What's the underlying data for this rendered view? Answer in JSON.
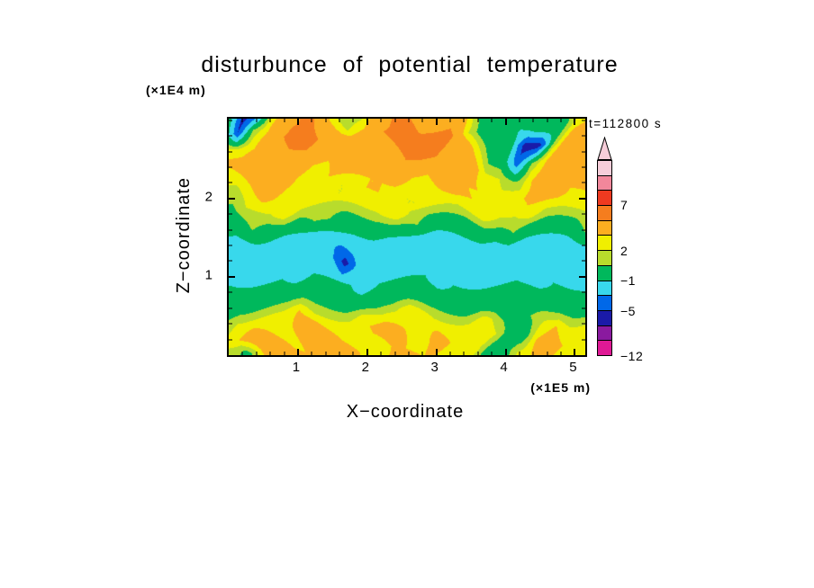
{
  "page": {
    "background": "#ffffff"
  },
  "chart_data": {
    "type": "heatmap",
    "title": "disturbunce of potential temperature",
    "xlabel": "X−coordinate",
    "ylabel": "Z−coordinate",
    "x_unit": "(×1E5 m)",
    "y_unit": "(×1E4 m)",
    "time_label": "t=112800 s",
    "xlim": [
      0,
      5.15
    ],
    "ylim": [
      0,
      3.02
    ],
    "x_ticks": [
      1,
      2,
      3,
      4,
      5
    ],
    "y_ticks": [
      1,
      2
    ],
    "minor_tick_step": 0.2,
    "grid": [
      [
        0,
        -6,
        -5,
        2,
        4,
        5,
        5,
        3,
        1,
        1,
        3,
        5,
        5,
        4,
        5,
        4,
        1,
        0,
        -1,
        0,
        1,
        0,
        2,
        3
      ],
      [
        2,
        -5,
        1,
        3,
        5,
        6,
        5,
        4,
        2,
        3,
        5,
        6,
        5,
        6,
        5,
        2,
        0,
        -1,
        0,
        -6,
        -6,
        1,
        4,
        4
      ],
      [
        3,
        2,
        3,
        5,
        5,
        4,
        3,
        4,
        5,
        5,
        4,
        5,
        5,
        5,
        4,
        4,
        2,
        0,
        0,
        -4,
        1,
        3,
        5,
        5
      ],
      [
        3,
        4,
        5,
        4,
        3,
        2,
        3,
        4,
        4,
        3,
        3,
        4,
        3,
        3,
        4,
        5,
        4,
        2,
        2,
        1,
        3,
        4,
        5,
        4
      ],
      [
        2,
        3,
        4,
        3,
        2,
        2,
        3,
        2,
        2,
        3,
        3,
        2,
        2,
        2,
        3,
        4,
        3,
        3,
        2,
        3,
        4,
        4,
        3,
        3
      ],
      [
        1,
        2,
        2,
        2,
        3,
        2,
        2,
        2,
        2,
        2,
        2,
        3,
        2,
        2,
        2,
        2,
        3,
        2,
        2,
        3,
        2,
        2,
        2,
        2
      ],
      [
        0,
        0,
        1,
        0,
        0,
        0,
        1,
        1,
        0,
        0,
        0,
        0,
        1,
        0,
        0,
        0,
        0,
        0,
        1,
        0,
        0,
        0,
        0,
        1
      ],
      [
        -1,
        -2,
        -2,
        -2,
        -3,
        -2,
        -2,
        -2,
        -2,
        -2,
        -3,
        -2,
        -2,
        -2,
        -2,
        -2,
        -2,
        -3,
        -2,
        -2,
        -2,
        -2,
        -2,
        -2
      ],
      [
        -2,
        -3,
        -2,
        -2,
        -2,
        -2,
        -2,
        -6,
        -2,
        -2,
        -2,
        -2,
        -3,
        -2,
        -2,
        -2,
        -2,
        -2,
        -2,
        -3,
        -2,
        -2,
        -2,
        -2
      ],
      [
        -1,
        -1,
        -1,
        -1,
        -2,
        -1,
        -1,
        -1,
        -1,
        -2,
        -1,
        -1,
        -1,
        -1,
        -2,
        -1,
        -1,
        -1,
        -1,
        -1,
        -2,
        -1,
        -1,
        -1
      ],
      [
        0,
        0,
        0,
        0,
        0,
        0,
        0,
        0,
        0,
        0,
        0,
        0,
        0,
        0,
        0,
        0,
        0,
        0,
        0,
        0,
        0,
        0,
        0,
        0
      ],
      [
        1,
        2,
        2,
        2,
        2,
        3,
        2,
        2,
        2,
        3,
        2,
        2,
        3,
        2,
        2,
        2,
        3,
        1,
        0,
        1,
        2,
        3,
        2,
        2
      ],
      [
        2,
        3,
        4,
        3,
        2,
        4,
        5,
        3,
        2,
        3,
        4,
        3,
        2,
        4,
        3,
        2,
        3,
        2,
        0,
        0,
        3,
        4,
        3,
        2
      ],
      [
        2,
        0,
        3,
        4,
        3,
        3,
        4,
        4,
        3,
        2,
        3,
        3,
        3,
        3,
        2,
        2,
        2,
        0,
        0,
        2,
        3,
        3,
        2,
        2
      ]
    ],
    "value_scale": [
      {
        "lt": -9,
        "color": "#df1995"
      },
      {
        "lt": -7,
        "color": "#8a1a9f"
      },
      {
        "lt": -5,
        "color": "#1a1aa8"
      },
      {
        "lt": -3,
        "color": "#0068e8"
      },
      {
        "lt": -1,
        "color": "#38d8ec"
      },
      {
        "lt": 1,
        "color": "#00b85c"
      },
      {
        "lt": 2,
        "color": "#b8dc2c"
      },
      {
        "lt": 3,
        "color": "#f0ef00"
      },
      {
        "lt": 5,
        "color": "#fcae20"
      },
      {
        "lt": 7,
        "color": "#f57d1e"
      },
      {
        "lt": 9,
        "color": "#ee3a20"
      },
      {
        "lt": 11,
        "color": "#f2879b"
      },
      {
        "lt": 999,
        "color": "#f6cdd9"
      }
    ],
    "colorbar": {
      "segments": [
        {
          "color": "#f6cdd9"
        },
        {
          "color": "#f2879b"
        },
        {
          "color": "#ee3a20",
          "label": "7"
        },
        {
          "color": "#f57d1e"
        },
        {
          "color": "#fcae20"
        },
        {
          "color": "#f0ef00",
          "label": "2"
        },
        {
          "color": "#b8dc2c"
        },
        {
          "color": "#00b85c",
          "label": "−1"
        },
        {
          "color": "#38d8ec"
        },
        {
          "color": "#0068e8",
          "label": "−5"
        },
        {
          "color": "#1a1aa8"
        },
        {
          "color": "#8a1a9f"
        },
        {
          "color": "#df1995",
          "label": "−12"
        }
      ]
    }
  }
}
